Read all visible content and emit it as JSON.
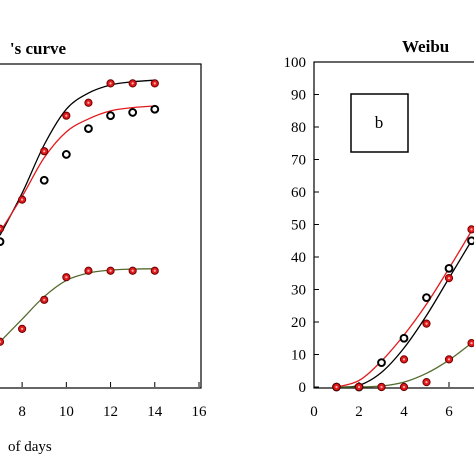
{
  "chart_data": [
    {
      "panel": "left",
      "type": "scatter",
      "title": "'s curve",
      "xlabel": "of days",
      "ylabel": "",
      "xlim": [
        7,
        16
      ],
      "ylim": [
        0,
        100
      ],
      "x_ticks": [
        "8",
        "10",
        "12",
        "14",
        "16"
      ],
      "grid": false,
      "series": [
        {
          "color": "#000000",
          "marker": "open circle",
          "x": [
            7,
            9,
            10,
            11,
            12,
            13,
            14
          ],
          "y": [
            45,
            64,
            72,
            80,
            84,
            85,
            86
          ]
        },
        {
          "color": "#e31a1c",
          "marker": "filled circle",
          "x": [
            7,
            8,
            9,
            10,
            11,
            12,
            13,
            14
          ],
          "y": [
            49,
            58,
            73,
            84,
            88,
            94,
            94,
            94
          ]
        },
        {
          "color": "#e31a1c",
          "marker": "filled circle",
          "x": [
            7,
            8,
            9,
            10,
            11,
            12,
            13,
            14
          ],
          "y": [
            14,
            18,
            27,
            34,
            36,
            36,
            36,
            36
          ]
        }
      ],
      "fit_curves": [
        {
          "color": "#000000",
          "x": [
            7,
            8,
            9,
            10,
            11,
            12,
            13,
            14
          ],
          "y": [
            47,
            60,
            75,
            86,
            91,
            93.5,
            94.5,
            95
          ]
        },
        {
          "color": "#e31a1c",
          "x": [
            7,
            8,
            9,
            10,
            11,
            12,
            13,
            14
          ],
          "y": [
            48,
            59,
            71,
            79,
            83,
            85.5,
            86.5,
            87
          ]
        },
        {
          "color": "#556b2f",
          "x": [
            7,
            8,
            9,
            10,
            11,
            12,
            13,
            14
          ],
          "y": [
            14,
            21,
            28,
            33,
            35.3,
            36.2,
            36.5,
            36.6
          ]
        }
      ]
    },
    {
      "panel": "right",
      "type": "scatter",
      "title": "Weibu",
      "annotation": "b",
      "xlabel": "",
      "ylabel": "",
      "xlim": [
        0,
        8
      ],
      "ylim": [
        0,
        100
      ],
      "x_ticks": [
        "0",
        "2",
        "4",
        "6"
      ],
      "y_ticks": [
        "0",
        "10",
        "20",
        "30",
        "40",
        "50",
        "60",
        "70",
        "80",
        "90",
        "100"
      ],
      "grid": false,
      "series": [
        {
          "color": "#000000",
          "marker": "open circle",
          "x": [
            1,
            2,
            3,
            4,
            5,
            6,
            7
          ],
          "y": [
            0,
            0,
            7.5,
            15,
            27.5,
            36.5,
            45
          ]
        },
        {
          "color": "#e31a1c",
          "marker": "filled circle",
          "x": [
            1,
            2,
            3,
            4,
            5,
            6,
            7
          ],
          "y": [
            0,
            0,
            0,
            8.5,
            19.5,
            33.5,
            48.5
          ]
        },
        {
          "color": "#e31a1c",
          "marker": "filled circle",
          "x": [
            1,
            2,
            3,
            4,
            5,
            6,
            7
          ],
          "y": [
            0,
            0,
            0,
            0,
            1.5,
            8.5,
            13.5
          ]
        }
      ],
      "fit_curves": [
        {
          "color": "#000000",
          "x": [
            1,
            2,
            3,
            4,
            5,
            6,
            7
          ],
          "y": [
            0,
            0.5,
            4.5,
            12,
            22,
            33.5,
            45
          ]
        },
        {
          "color": "#e31a1c",
          "x": [
            1,
            2,
            3,
            4,
            5,
            6,
            7
          ],
          "y": [
            0,
            2,
            8,
            16,
            25.5,
            36.5,
            48
          ]
        },
        {
          "color": "#556b2f",
          "x": [
            1,
            2,
            3,
            4,
            5,
            6,
            7
          ],
          "y": [
            0,
            0,
            0.3,
            1.5,
            4.2,
            8.3,
            13.5
          ]
        }
      ]
    }
  ]
}
